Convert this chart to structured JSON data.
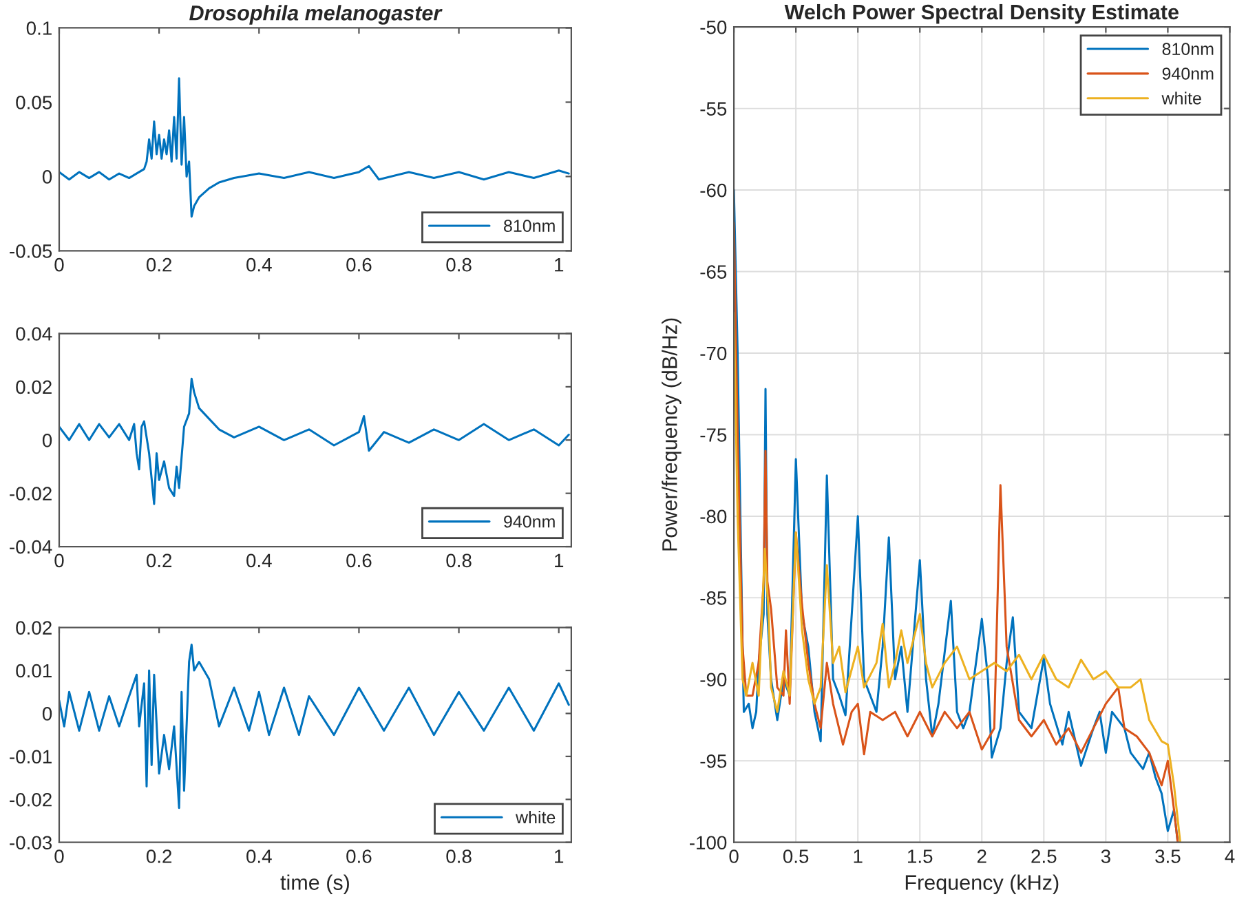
{
  "chart_data": [
    {
      "type": "line",
      "title": "Drosophila melanogaster",
      "xlim": [
        0,
        1.025
      ],
      "xticks": [
        0,
        0.2,
        0.4,
        0.6,
        0.8,
        1
      ],
      "ylim": [
        -0.05,
        0.1
      ],
      "yticks": [
        -0.05,
        0,
        0.05,
        0.1
      ],
      "grid": false,
      "legend": "bottom right",
      "series": [
        {
          "name": "810nm",
          "color": "#0072bd",
          "x": [
            0,
            0.02,
            0.04,
            0.06,
            0.08,
            0.1,
            0.12,
            0.14,
            0.16,
            0.17,
            0.175,
            0.18,
            0.185,
            0.19,
            0.195,
            0.2,
            0.205,
            0.21,
            0.215,
            0.22,
            0.225,
            0.23,
            0.235,
            0.24,
            0.245,
            0.25,
            0.255,
            0.26,
            0.265,
            0.27,
            0.28,
            0.3,
            0.32,
            0.35,
            0.4,
            0.45,
            0.5,
            0.55,
            0.6,
            0.62,
            0.64,
            0.7,
            0.75,
            0.8,
            0.85,
            0.9,
            0.95,
            1.0,
            1.02
          ],
          "values": [
            0.003,
            -0.002,
            0.003,
            -0.001,
            0.003,
            -0.002,
            0.002,
            -0.001,
            0.003,
            0.005,
            0.01,
            0.025,
            0.012,
            0.037,
            0.015,
            0.028,
            0.012,
            0.025,
            0.015,
            0.031,
            0.01,
            0.04,
            0.012,
            0.066,
            0.008,
            0.04,
            0.0,
            0.01,
            -0.027,
            -0.02,
            -0.014,
            -0.008,
            -0.004,
            -0.001,
            0.002,
            -0.001,
            0.003,
            -0.001,
            0.003,
            0.007,
            -0.002,
            0.003,
            -0.001,
            0.003,
            -0.002,
            0.003,
            -0.001,
            0.004,
            0.002
          ]
        }
      ]
    },
    {
      "type": "line",
      "xlim": [
        0,
        1.025
      ],
      "xticks": [
        0,
        0.2,
        0.4,
        0.6,
        0.8,
        1
      ],
      "ylim": [
        -0.04,
        0.04
      ],
      "yticks": [
        -0.04,
        -0.02,
        0,
        0.02,
        0.04
      ],
      "grid": false,
      "legend": "bottom right",
      "series": [
        {
          "name": "940nm",
          "color": "#0072bd",
          "x": [
            0,
            0.02,
            0.04,
            0.06,
            0.08,
            0.1,
            0.12,
            0.14,
            0.15,
            0.155,
            0.16,
            0.165,
            0.17,
            0.18,
            0.19,
            0.195,
            0.2,
            0.21,
            0.22,
            0.23,
            0.235,
            0.24,
            0.25,
            0.26,
            0.265,
            0.27,
            0.28,
            0.3,
            0.32,
            0.35,
            0.4,
            0.45,
            0.5,
            0.55,
            0.6,
            0.61,
            0.62,
            0.65,
            0.7,
            0.75,
            0.8,
            0.85,
            0.9,
            0.95,
            1.0,
            1.02
          ],
          "values": [
            0.005,
            0.0,
            0.006,
            0.0,
            0.006,
            0.001,
            0.006,
            0.0,
            0.006,
            -0.005,
            -0.011,
            0.005,
            0.007,
            -0.005,
            -0.024,
            -0.005,
            -0.015,
            -0.008,
            -0.018,
            -0.021,
            -0.01,
            -0.018,
            0.005,
            0.01,
            0.023,
            0.018,
            0.012,
            0.008,
            0.004,
            0.001,
            0.005,
            0.0,
            0.004,
            -0.002,
            0.003,
            0.009,
            -0.004,
            0.003,
            -0.001,
            0.004,
            0.0,
            0.006,
            0.0,
            0.004,
            -0.002,
            0.002
          ]
        }
      ]
    },
    {
      "type": "line",
      "xlabel": "time (s)",
      "xlim": [
        0,
        1.025
      ],
      "xticks": [
        0,
        0.2,
        0.4,
        0.6,
        0.8,
        1
      ],
      "ylim": [
        -0.03,
        0.02
      ],
      "yticks": [
        -0.03,
        -0.02,
        -0.01,
        0,
        0.01,
        0.02
      ],
      "grid": false,
      "legend": "bottom right",
      "series": [
        {
          "name": "white",
          "color": "#0072bd",
          "x": [
            0,
            0.01,
            0.02,
            0.04,
            0.06,
            0.08,
            0.1,
            0.12,
            0.14,
            0.155,
            0.16,
            0.17,
            0.175,
            0.18,
            0.185,
            0.19,
            0.2,
            0.21,
            0.22,
            0.23,
            0.24,
            0.245,
            0.25,
            0.26,
            0.265,
            0.27,
            0.28,
            0.3,
            0.32,
            0.35,
            0.38,
            0.4,
            0.42,
            0.45,
            0.48,
            0.5,
            0.55,
            0.6,
            0.65,
            0.7,
            0.75,
            0.8,
            0.85,
            0.9,
            0.95,
            1.0,
            1.02
          ],
          "values": [
            0.003,
            -0.003,
            0.005,
            -0.004,
            0.005,
            -0.004,
            0.004,
            -0.003,
            0.004,
            0.009,
            -0.003,
            0.007,
            -0.017,
            0.01,
            -0.012,
            0.009,
            -0.014,
            -0.005,
            -0.013,
            -0.003,
            -0.022,
            0.005,
            -0.018,
            0.012,
            0.016,
            0.01,
            0.012,
            0.008,
            -0.003,
            0.006,
            -0.004,
            0.005,
            -0.005,
            0.006,
            -0.005,
            0.004,
            -0.005,
            0.006,
            -0.004,
            0.006,
            -0.005,
            0.005,
            -0.004,
            0.006,
            -0.004,
            0.007,
            0.002
          ]
        }
      ]
    },
    {
      "type": "line",
      "title": "Welch Power Spectral Density Estimate",
      "xlabel": "Frequency (kHz)",
      "ylabel": "Power/frequency (dB/Hz)",
      "xlim": [
        0,
        4
      ],
      "xticks": [
        0,
        0.5,
        1,
        1.5,
        2,
        2.5,
        3,
        3.5,
        4
      ],
      "ylim": [
        -100,
        -50
      ],
      "yticks": [
        -100,
        -95,
        -90,
        -85,
        -80,
        -75,
        -70,
        -65,
        -60,
        -55,
        -50
      ],
      "grid": true,
      "legend": "top right",
      "series": [
        {
          "name": "810nm",
          "color": "#0072bd",
          "x": [
            0,
            0.03,
            0.07,
            0.08,
            0.12,
            0.15,
            0.18,
            0.2,
            0.24,
            0.255,
            0.27,
            0.3,
            0.35,
            0.4,
            0.45,
            0.5,
            0.55,
            0.6,
            0.65,
            0.7,
            0.75,
            0.8,
            0.85,
            0.9,
            1.0,
            1.05,
            1.1,
            1.15,
            1.2,
            1.25,
            1.3,
            1.35,
            1.4,
            1.5,
            1.55,
            1.6,
            1.65,
            1.75,
            1.8,
            1.85,
            1.9,
            2.0,
            2.05,
            2.08,
            2.15,
            2.2,
            2.25,
            2.3,
            2.4,
            2.5,
            2.55,
            2.65,
            2.7,
            2.8,
            2.9,
            2.95,
            3.0,
            3.05,
            3.15,
            3.2,
            3.3,
            3.35,
            3.4,
            3.45,
            3.5,
            3.55,
            3.58
          ],
          "values": [
            -60,
            -70,
            -88,
            -92,
            -91.5,
            -93,
            -92,
            -89,
            -86,
            -72.2,
            -86,
            -90,
            -92.5,
            -90,
            -91,
            -76.5,
            -86,
            -88,
            -92,
            -93.8,
            -77.5,
            -90,
            -91,
            -92.2,
            -80,
            -90,
            -91,
            -92,
            -88,
            -81.3,
            -90,
            -88,
            -92,
            -82.7,
            -90,
            -93.5,
            -91.5,
            -85.2,
            -92,
            -93,
            -92,
            -86.3,
            -90,
            -94.8,
            -93,
            -89,
            -86.2,
            -92,
            -93,
            -88.7,
            -91.5,
            -94,
            -92,
            -95.3,
            -93,
            -92,
            -94.5,
            -92,
            -93,
            -94.5,
            -95.5,
            -94.5,
            -96,
            -97,
            -99.3,
            -98,
            -100
          ]
        },
        {
          "name": "940nm",
          "color": "#d95319",
          "x": [
            0,
            0.03,
            0.07,
            0.1,
            0.15,
            0.2,
            0.24,
            0.255,
            0.27,
            0.3,
            0.35,
            0.4,
            0.42,
            0.45,
            0.5,
            0.55,
            0.6,
            0.65,
            0.7,
            0.75,
            0.8,
            0.88,
            0.95,
            1.0,
            1.05,
            1.1,
            1.2,
            1.3,
            1.4,
            1.5,
            1.6,
            1.7,
            1.8,
            1.9,
            2.0,
            2.1,
            2.15,
            2.2,
            2.3,
            2.4,
            2.5,
            2.6,
            2.7,
            2.8,
            2.9,
            3.0,
            3.1,
            3.15,
            3.25,
            3.35,
            3.45,
            3.5,
            3.55,
            3.58
          ],
          "values": [
            -62,
            -75,
            -88,
            -91,
            -91,
            -89,
            -84,
            -76,
            -84,
            -85.7,
            -90.5,
            -91,
            -87,
            -91.5,
            -81,
            -85.5,
            -89,
            -91.5,
            -93,
            -89,
            -91.5,
            -94,
            -92,
            -91.5,
            -94.6,
            -92,
            -92.5,
            -92,
            -93.5,
            -92,
            -93.5,
            -92,
            -93,
            -92,
            -94.3,
            -93,
            -78.1,
            -88,
            -92.5,
            -93.5,
            -92.5,
            -94,
            -93,
            -94.5,
            -93,
            -91.5,
            -90.5,
            -93,
            -93.5,
            -94.5,
            -96.5,
            -95,
            -98,
            -100
          ]
        },
        {
          "name": "white",
          "color": "#edb120",
          "x": [
            0,
            0.03,
            0.07,
            0.1,
            0.15,
            0.2,
            0.25,
            0.28,
            0.3,
            0.35,
            0.4,
            0.45,
            0.5,
            0.55,
            0.6,
            0.65,
            0.7,
            0.75,
            0.8,
            0.85,
            0.9,
            1.0,
            1.05,
            1.15,
            1.2,
            1.25,
            1.3,
            1.35,
            1.4,
            1.45,
            1.5,
            1.55,
            1.6,
            1.7,
            1.8,
            1.9,
            2.0,
            2.1,
            2.2,
            2.3,
            2.4,
            2.5,
            2.6,
            2.7,
            2.8,
            2.9,
            3.0,
            3.1,
            3.2,
            3.28,
            3.35,
            3.45,
            3.5,
            3.55,
            3.6
          ],
          "values": [
            -67.5,
            -80,
            -90,
            -91,
            -89,
            -91,
            -82,
            -86,
            -90.5,
            -92,
            -89.5,
            -91,
            -81,
            -87,
            -90,
            -91.5,
            -90.5,
            -83,
            -89,
            -88,
            -90.8,
            -88,
            -90.5,
            -89,
            -86.6,
            -90.5,
            -89,
            -87,
            -89,
            -87.5,
            -86,
            -89,
            -90.5,
            -89,
            -88,
            -90,
            -89.5,
            -89,
            -89.5,
            -88.5,
            -90,
            -88.5,
            -90,
            -90.5,
            -88.8,
            -90,
            -89.5,
            -90.5,
            -90.5,
            -90,
            -92.5,
            -93.8,
            -94,
            -96.5,
            -100
          ]
        }
      ]
    }
  ]
}
